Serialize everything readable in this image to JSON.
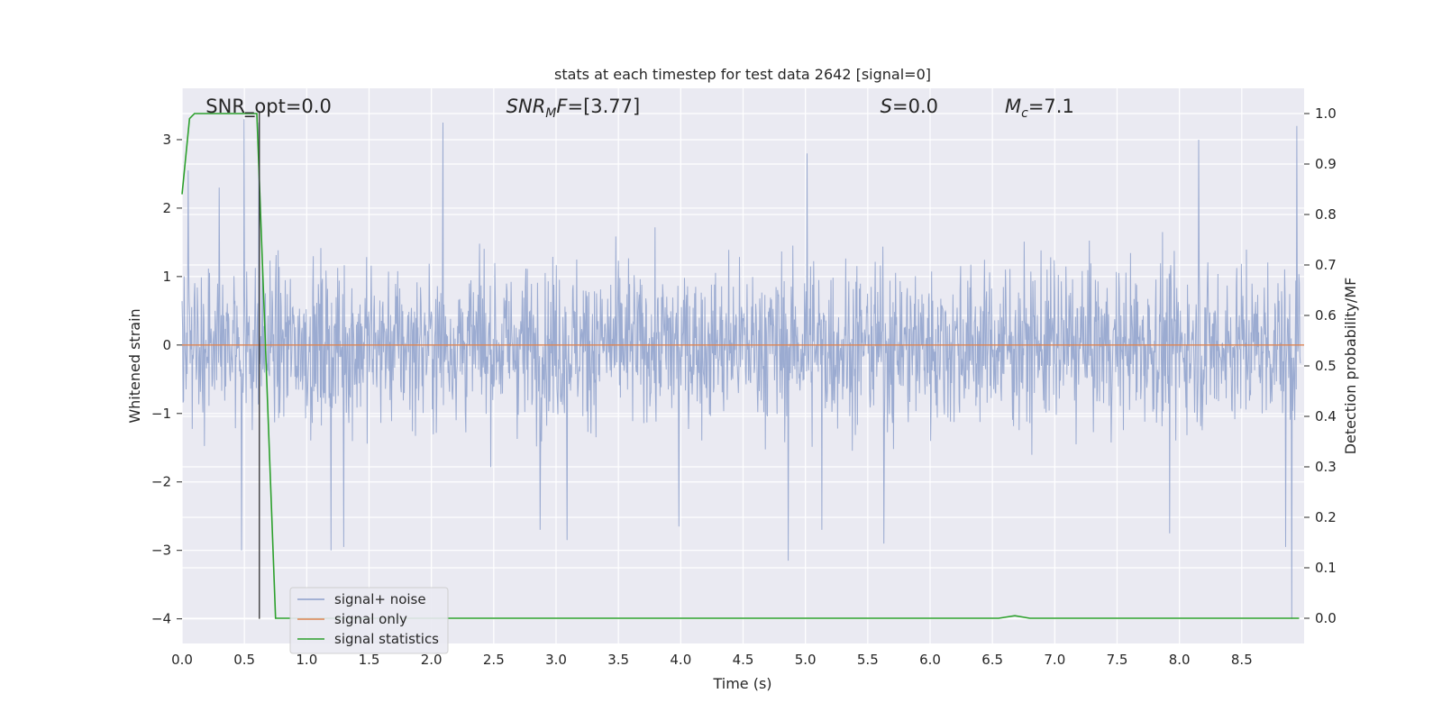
{
  "chart_data": {
    "type": "line",
    "title": "stats at each timestep for test data 2642 [signal=0]",
    "xlabel": "Time (s)",
    "ylabel": "Whitened strain",
    "ylabel_right": "Detection probability/MF",
    "xlim": [
      0,
      9.0
    ],
    "ylim": [
      -4.36,
      3.75
    ],
    "ylim_right": [
      -0.05,
      1.05
    ],
    "x_ticks": [
      0.0,
      0.5,
      1.0,
      1.5,
      2.0,
      2.5,
      3.0,
      3.5,
      4.0,
      4.5,
      5.0,
      5.5,
      6.0,
      6.5,
      7.0,
      7.5,
      8.0,
      8.5
    ],
    "x_tick_labels": [
      "0.0",
      "0.5",
      "1.0",
      "1.5",
      "2.0",
      "2.5",
      "3.0",
      "3.5",
      "4.0",
      "4.5",
      "5.0",
      "5.5",
      "6.0",
      "6.5",
      "7.0",
      "7.5",
      "8.0",
      "8.5"
    ],
    "y_ticks": [
      -4,
      -3,
      -2,
      -1,
      0,
      1,
      2,
      3
    ],
    "y_tick_labels": [
      "−4",
      "−3",
      "−2",
      "−1",
      "0",
      "1",
      "2",
      "3"
    ],
    "y_ticks_right": [
      0.0,
      0.1,
      0.2,
      0.3,
      0.4,
      0.5,
      0.6,
      0.7,
      0.8,
      0.9,
      1.0
    ],
    "y_tick_labels_right": [
      "0.0",
      "0.1",
      "0.2",
      "0.3",
      "0.4",
      "0.5",
      "0.6",
      "0.7",
      "0.8",
      "0.9",
      "1.0"
    ],
    "grid": true,
    "legend_position": "lower-left",
    "series": [
      {
        "name": "signal+ noise",
        "color": "#8da0cb",
        "description_values": "whitened noise, roughly within ±2.3 with spikes to 3.3 and -4.0",
        "peaks": [
          {
            "x": 0.05,
            "y": 2.55
          },
          {
            "x": 0.3,
            "y": 2.3
          },
          {
            "x": 0.5,
            "y": 3.3
          },
          {
            "x": 0.62,
            "y": 3.25
          },
          {
            "x": 0.48,
            "y": -3.0
          },
          {
            "x": 1.2,
            "y": -3.0
          },
          {
            "x": 1.3,
            "y": -2.95
          },
          {
            "x": 2.1,
            "y": 3.25
          },
          {
            "x": 2.88,
            "y": -2.7
          },
          {
            "x": 3.1,
            "y": -2.85
          },
          {
            "x": 4.0,
            "y": -2.65
          },
          {
            "x": 4.88,
            "y": -3.15
          },
          {
            "x": 5.03,
            "y": 2.8
          },
          {
            "x": 5.15,
            "y": -2.7
          },
          {
            "x": 5.65,
            "y": -2.9
          },
          {
            "x": 7.95,
            "y": -2.75
          },
          {
            "x": 8.18,
            "y": 3.0
          },
          {
            "x": 8.88,
            "y": -2.95
          },
          {
            "x": 8.93,
            "y": -4.0
          },
          {
            "x": 8.97,
            "y": 3.2
          }
        ]
      },
      {
        "name": "signal only",
        "color": "#dd8452",
        "x": [
          0.0,
          9.0
        ],
        "y": [
          0.0,
          0.0
        ]
      },
      {
        "name": "signal statistics",
        "color": "#2ca02c",
        "axis": "right",
        "x": [
          0.0,
          0.06,
          0.1,
          0.2,
          0.4,
          0.6,
          0.75,
          1.0,
          2.0,
          3.0,
          4.0,
          5.0,
          6.0,
          6.55,
          6.68,
          6.8,
          7.0,
          7.6,
          8.0,
          8.96
        ],
        "y": [
          0.84,
          0.99,
          1.0,
          1.0,
          1.0,
          1.0,
          0.0,
          0.0,
          0.0,
          0.0,
          0.0,
          0.0,
          0.0,
          0.0,
          0.005,
          0.0,
          0.0,
          0.0,
          0.0,
          0.0
        ]
      }
    ],
    "marker_line": {
      "x": 0.62,
      "y_bottom": -4.0,
      "y_top": 3.42,
      "color": "#333333"
    },
    "annotations": [
      {
        "id": "snr_opt",
        "text": "SNR_opt=0.0",
        "x": 0.19,
        "y": 3.5
      },
      {
        "id": "snr_mf",
        "text": "SNR",
        "sub": "M",
        "after": "F=[3.77]",
        "x": 2.6,
        "y": 3.5
      },
      {
        "id": "s",
        "text": "S",
        "after": "=0.0",
        "x": 5.6,
        "y": 3.5
      },
      {
        "id": "mc",
        "text": "M",
        "sub": "c",
        "after": "=7.1",
        "x": 6.6,
        "y": 3.5
      }
    ]
  }
}
